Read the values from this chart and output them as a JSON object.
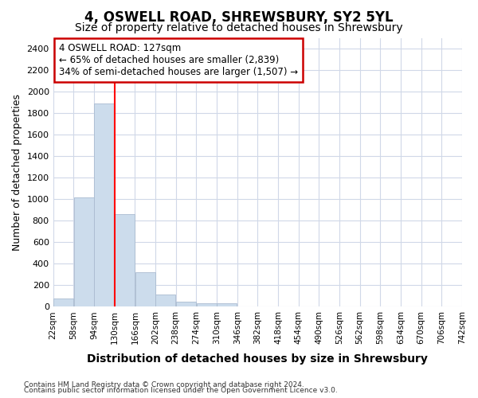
{
  "title": "4, OSWELL ROAD, SHREWSBURY, SY2 5YL",
  "subtitle": "Size of property relative to detached houses in Shrewsbury",
  "xlabel": "Distribution of detached houses by size in Shrewsbury",
  "ylabel": "Number of detached properties",
  "bar_color": "#ccdcec",
  "bar_edge_color": "#aabbd0",
  "red_line_x": 130,
  "annotation_line1": "4 OSWELL ROAD: 127sqm",
  "annotation_line2": "← 65% of detached houses are smaller (2,839)",
  "annotation_line3": "34% of semi-detached houses are larger (1,507) →",
  "footer_line1": "Contains HM Land Registry data © Crown copyright and database right 2024.",
  "footer_line2": "Contains public sector information licensed under the Open Government Licence v3.0.",
  "bin_edges": [
    22,
    58,
    94,
    130,
    166,
    202,
    238,
    274,
    310,
    346,
    382,
    418,
    454,
    490,
    526,
    562,
    598,
    634,
    670,
    706,
    742
  ],
  "bar_heights": [
    80,
    1020,
    1890,
    860,
    320,
    115,
    50,
    35,
    30,
    0,
    0,
    0,
    0,
    0,
    0,
    0,
    0,
    0,
    0,
    0
  ],
  "ylim": [
    0,
    2500
  ],
  "yticks": [
    0,
    200,
    400,
    600,
    800,
    1000,
    1200,
    1400,
    1600,
    1800,
    2000,
    2200,
    2400
  ],
  "bg_color": "#ffffff",
  "grid_color": "#d0d8e8",
  "annotation_box_bg": "#ffffff",
  "annotation_box_edge": "#cc0000",
  "title_fontsize": 12,
  "subtitle_fontsize": 10
}
